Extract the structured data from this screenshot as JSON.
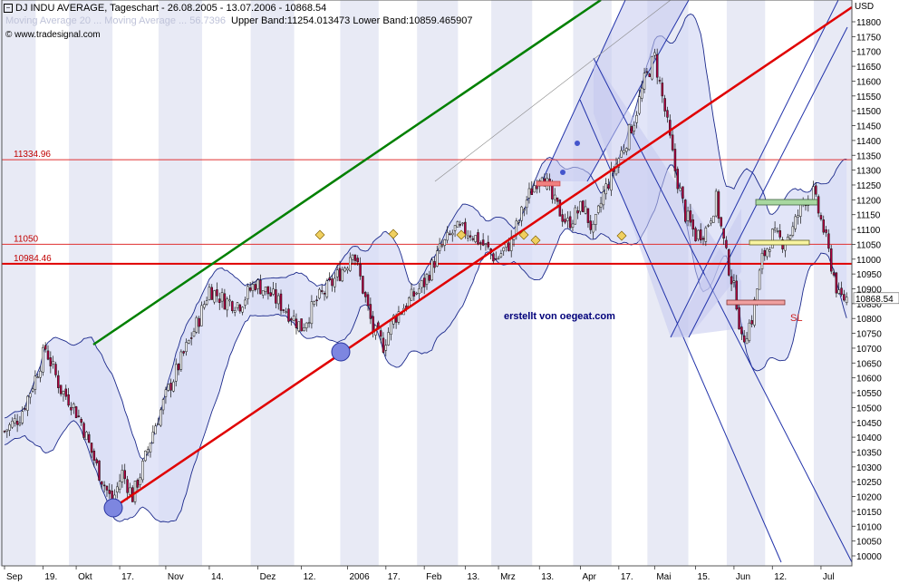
{
  "header": {
    "title": "DJ INDU AVERAGE, Tageschart - 26.08.2005 - 13.07.2006 - 10868.54",
    "source": "© www.tradesignal.com",
    "bands": "Upper Band:11254.013473 Lower Band:10859.465907",
    "faded_legend": "Moving Average 20 ... Moving Average ... 56.7396"
  },
  "credit": "erstellt von oegeat.com",
  "y_axis": {
    "unit": "USD"
  },
  "price_tag": "10868.54",
  "colors": {
    "candle_up": "#ffffff",
    "candle_down": "#b00040",
    "band_fill": "#d8dcf5",
    "band_line": "#1c2a8c",
    "channel_fill": "#c4c8ee",
    "red_line": "#e00000",
    "green_line": "#008000",
    "blue_line": "#2233aa",
    "stripe": "#e8eaf5",
    "h_line": "#e03030"
  },
  "hlines": [
    {
      "value": 11334.96,
      "label": "11334.96",
      "style": "thin"
    },
    {
      "value": 11050,
      "label": "11050",
      "style": "thin"
    },
    {
      "value": 10984.46,
      "label": "10984.46",
      "style": "thick"
    }
  ],
  "markers": [
    {
      "label": "SL"
    }
  ],
  "chart_data": {
    "type": "candlestick",
    "title": "DJ INDU AVERAGE, Tageschart - 26.08.2005 - 13.07.2006 - 10868.54",
    "ylim": [
      10000,
      11850
    ],
    "y_ticks": [
      10000,
      10050,
      10100,
      10150,
      10200,
      10250,
      10300,
      10350,
      10400,
      10450,
      10500,
      10550,
      10600,
      10650,
      10700,
      10750,
      10800,
      10850,
      10900,
      10950,
      11000,
      11050,
      11100,
      11150,
      11200,
      11250,
      11300,
      11350,
      11400,
      11450,
      11500,
      11550,
      11600,
      11650,
      11700,
      11750,
      11800
    ],
    "x_tick_labels": [
      "Sep",
      "19.",
      "Okt",
      "17.",
      "Nov",
      "14.",
      "Dez",
      "12.",
      "2006",
      "17.",
      "Feb",
      "13.",
      "Mrz",
      "13.",
      "Apr",
      "17.",
      "Mai",
      "15.",
      "Jun",
      "12.",
      "Jul"
    ],
    "x_tick_index": [
      0,
      15,
      28,
      45,
      63,
      80,
      99,
      116,
      134,
      149,
      164,
      180,
      193,
      209,
      225,
      240,
      254,
      270,
      285,
      300,
      319
    ],
    "close_keypoints": [
      [
        0,
        10420
      ],
      [
        6,
        10470
      ],
      [
        12,
        10600
      ],
      [
        16,
        10700
      ],
      [
        22,
        10560
      ],
      [
        26,
        10520
      ],
      [
        30,
        10450
      ],
      [
        36,
        10300
      ],
      [
        42,
        10180
      ],
      [
        46,
        10280
      ],
      [
        50,
        10200
      ],
      [
        54,
        10300
      ],
      [
        58,
        10420
      ],
      [
        64,
        10560
      ],
      [
        70,
        10680
      ],
      [
        76,
        10800
      ],
      [
        80,
        10900
      ],
      [
        86,
        10860
      ],
      [
        92,
        10850
      ],
      [
        98,
        10920
      ],
      [
        104,
        10880
      ],
      [
        110,
        10830
      ],
      [
        116,
        10770
      ],
      [
        122,
        10860
      ],
      [
        128,
        10920
      ],
      [
        134,
        10990
      ],
      [
        136,
        11040
      ],
      [
        140,
        10900
      ],
      [
        144,
        10760
      ],
      [
        148,
        10710
      ],
      [
        152,
        10800
      ],
      [
        158,
        10860
      ],
      [
        164,
        10920
      ],
      [
        170,
        11030
      ],
      [
        176,
        11100
      ],
      [
        182,
        11090
      ],
      [
        188,
        11040
      ],
      [
        192,
        11000
      ],
      [
        198,
        11060
      ],
      [
        204,
        11200
      ],
      [
        210,
        11300
      ],
      [
        214,
        11200
      ],
      [
        220,
        11120
      ],
      [
        226,
        11180
      ],
      [
        230,
        11090
      ],
      [
        234,
        11220
      ],
      [
        238,
        11300
      ],
      [
        242,
        11380
      ],
      [
        246,
        11470
      ],
      [
        250,
        11600
      ],
      [
        254,
        11680
      ],
      [
        258,
        11500
      ],
      [
        262,
        11300
      ],
      [
        266,
        11150
      ],
      [
        270,
        11080
      ],
      [
        274,
        11100
      ],
      [
        278,
        11200
      ],
      [
        282,
        11010
      ],
      [
        286,
        10860
      ],
      [
        288,
        10720
      ],
      [
        292,
        10800
      ],
      [
        296,
        11000
      ],
      [
        300,
        11080
      ],
      [
        304,
        11060
      ],
      [
        308,
        11100
      ],
      [
        312,
        11200
      ],
      [
        316,
        11220
      ],
      [
        320,
        11100
      ],
      [
        322,
        11020
      ],
      [
        326,
        10869
      ]
    ],
    "x_count": 330
  }
}
